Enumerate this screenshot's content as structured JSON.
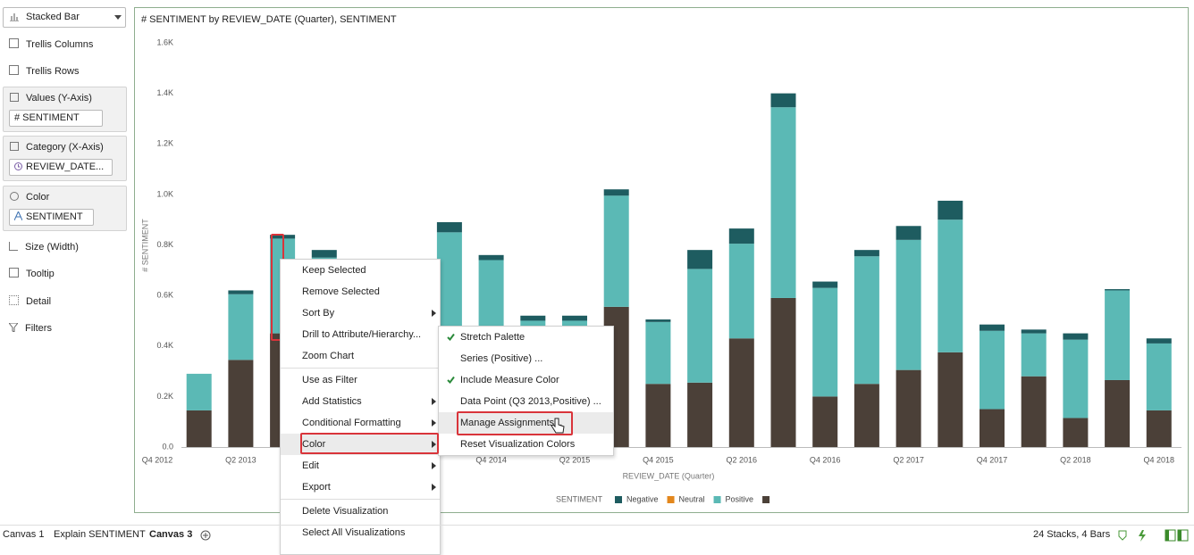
{
  "grammar_panel": {
    "viz_type": "Stacked Bar",
    "trellis_columns": "Trellis Columns",
    "trellis_rows": "Trellis Rows",
    "values_label": "Values (Y-Axis)",
    "values_pill": "# SENTIMENT",
    "category_label": "Category (X-Axis)",
    "category_pill": "REVIEW_DATE...",
    "color_label": "Color",
    "color_pill": "SENTIMENT",
    "size": "Size (Width)",
    "tooltip": "Tooltip",
    "detail": "Detail",
    "filters": "Filters"
  },
  "chart_data": {
    "type": "stacked_bar",
    "title": "# SENTIMENT by REVIEW_DATE (Quarter), SENTIMENT",
    "y_label": "# SENTIMENT",
    "x_label": "REVIEW_DATE (Quarter)",
    "legend_title": "SENTIMENT",
    "categories": [
      "Q4 2012",
      null,
      "Q2 2013",
      null,
      null,
      null,
      null,
      null,
      "Q4 2014",
      null,
      "Q2 2015",
      null,
      "Q4 2015",
      null,
      "Q2 2016",
      null,
      "Q4 2016",
      null,
      "Q2 2017",
      null,
      "Q4 2017",
      null,
      "Q2 2018",
      null,
      "Q4 2018"
    ],
    "series": [
      {
        "name": "Negative",
        "color": "#1e5c60",
        "values": [
          null,
          0,
          0.015,
          0.015,
          0.03,
          0.02,
          0.02,
          0.04,
          0.02,
          0.02,
          0.02,
          0.025,
          0.01,
          0.075,
          0.06,
          0.055,
          0.025,
          0.025,
          0.055,
          0.075,
          0.025,
          0.015,
          0.025,
          0.005,
          0.02
        ]
      },
      {
        "name": "Neutral",
        "color": "#e3871c",
        "values": [
          null,
          0,
          0,
          0,
          0,
          0,
          0,
          0,
          0,
          0,
          0,
          0,
          0,
          0,
          0,
          0,
          0,
          0,
          0,
          0,
          0,
          0,
          0,
          0,
          0
        ]
      },
      {
        "name": "Positive",
        "color": "#5bb9b5",
        "values": [
          null,
          0.145,
          0.26,
          0.375,
          0.4,
          0.35,
          0.3,
          0.5,
          0.44,
          0.3,
          0.15,
          0.44,
          0.245,
          0.45,
          0.375,
          0.755,
          0.43,
          0.505,
          0.515,
          0.525,
          0.31,
          0.17,
          0.31,
          0.355,
          0.265
        ]
      },
      {
        "color": "#4b4038",
        "values": [
          null,
          0.145,
          0.345,
          0.45,
          0.35,
          0.3,
          0.25,
          0.35,
          0.3,
          0.2,
          0.35,
          0.555,
          0.25,
          0.255,
          0.43,
          0.59,
          0.2,
          0.25,
          0.305,
          0.375,
          0.15,
          0.28,
          0.115,
          0.265,
          0.145
        ]
      }
    ],
    "ylim": [
      0,
      1.6
    ],
    "yticks": [
      {
        "value": 0,
        "label": "0.0"
      },
      {
        "value": 0.2,
        "label": "0.2K"
      },
      {
        "value": 0.4,
        "label": "0.4K"
      },
      {
        "value": 0.6,
        "label": "0.6K"
      },
      {
        "value": 0.8,
        "label": "0.8K"
      },
      {
        "value": 1.0,
        "label": "1.0K"
      },
      {
        "value": 1.2,
        "label": "1.2K"
      },
      {
        "value": 1.4,
        "label": "1.4K"
      },
      {
        "value": 1.6,
        "label": "1.6K"
      }
    ],
    "grid": false
  },
  "context_menu": {
    "items": [
      {
        "label": "Keep Selected"
      },
      {
        "label": "Remove Selected"
      },
      {
        "label": "Sort By",
        "submenu": true
      },
      {
        "label": "Drill to Attribute/Hierarchy..."
      },
      {
        "label": "Zoom Chart",
        "separator_after": true
      },
      {
        "label": "Use as Filter"
      },
      {
        "label": "Add Statistics",
        "submenu": true
      },
      {
        "label": "Conditional Formatting",
        "submenu": true
      },
      {
        "label": "Color",
        "submenu": true,
        "highlighted": true
      },
      {
        "label": "Edit",
        "submenu": true
      },
      {
        "label": "Export",
        "submenu": true,
        "separator_after": true
      },
      {
        "label": "Delete Visualization"
      },
      {
        "label": "Select All Visualizations"
      }
    ]
  },
  "color_submenu": {
    "items": [
      {
        "label": "Stretch Palette",
        "checked": true
      },
      {
        "label": "Series (Positive) ..."
      },
      {
        "label": "Include Measure Color",
        "checked": true
      },
      {
        "label": "Data Point (Q3 2013,Positive) ..."
      },
      {
        "label": "Manage Assignments...",
        "highlighted": true
      },
      {
        "label": "Reset Visualization Colors"
      }
    ]
  },
  "footer": {
    "tabs": [
      "Canvas 1",
      "Explain SENTIMENT",
      "Canvas 3"
    ],
    "active_tab": 2,
    "status": "24 Stacks, 4 Bars"
  }
}
